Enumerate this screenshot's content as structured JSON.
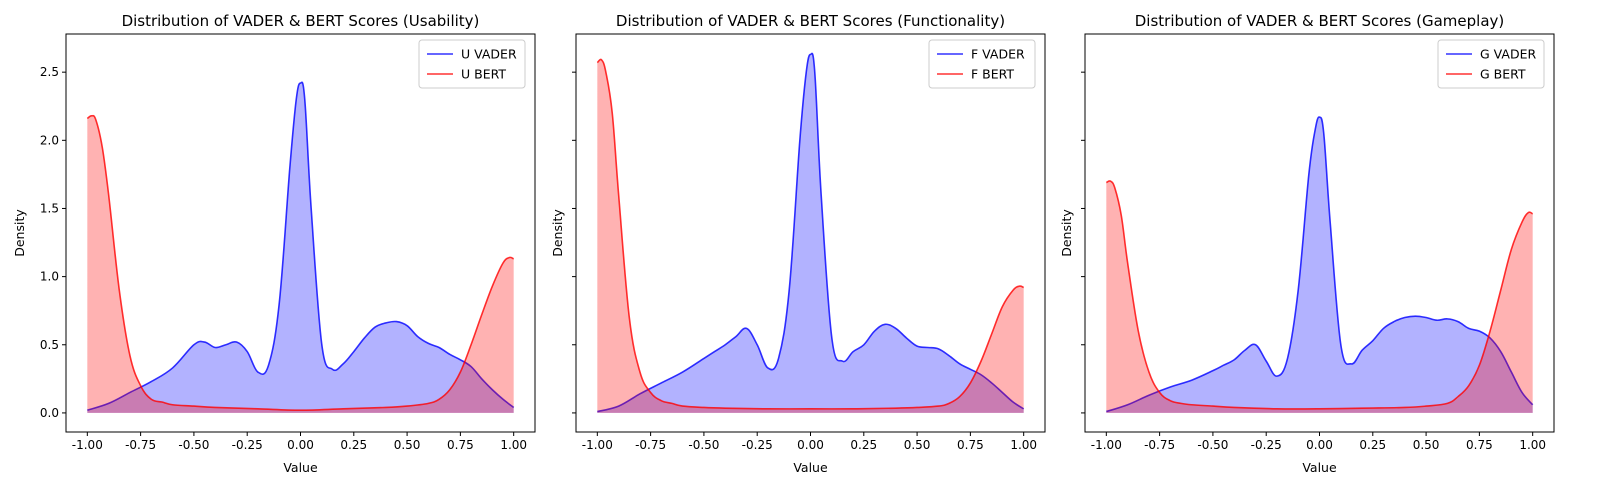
{
  "figure": {
    "background": "#ffffff",
    "series_colors": {
      "vader": "#0000ff",
      "bert": "#ff0000"
    }
  },
  "chart_data": [
    {
      "type": "area",
      "title": "Distribution of VADER & BERT Scores (Usability)",
      "xlabel": "Value",
      "ylabel": "Density",
      "xlim": [
        -1.1,
        1.1
      ],
      "ylim": [
        -0.14,
        2.78
      ],
      "xticks": [
        "-1.00",
        "-0.75",
        "-0.50",
        "-0.25",
        "0.00",
        "0.25",
        "0.50",
        "0.75",
        "1.00"
      ],
      "yticks": [
        "0.0",
        "0.5",
        "1.0",
        "1.5",
        "2.0",
        "2.5"
      ],
      "show_ytick_labels": true,
      "grid": false,
      "legend": "top-right",
      "series": [
        {
          "name": "U VADER",
          "color": "#0000ff",
          "x": [
            -1.0,
            -0.9,
            -0.8,
            -0.7,
            -0.6,
            -0.5,
            -0.45,
            -0.4,
            -0.35,
            -0.3,
            -0.25,
            -0.2,
            -0.15,
            -0.1,
            -0.05,
            -0.02,
            0.0,
            0.02,
            0.05,
            0.1,
            0.15,
            0.2,
            0.25,
            0.3,
            0.35,
            0.4,
            0.45,
            0.5,
            0.55,
            0.6,
            0.65,
            0.7,
            0.75,
            0.8,
            0.85,
            0.9,
            0.95,
            1.0
          ],
          "values": [
            0.02,
            0.07,
            0.15,
            0.23,
            0.33,
            0.5,
            0.52,
            0.48,
            0.5,
            0.52,
            0.45,
            0.3,
            0.35,
            0.8,
            1.8,
            2.3,
            2.42,
            2.3,
            1.5,
            0.5,
            0.32,
            0.36,
            0.45,
            0.55,
            0.63,
            0.66,
            0.67,
            0.64,
            0.56,
            0.51,
            0.48,
            0.43,
            0.39,
            0.34,
            0.25,
            0.17,
            0.1,
            0.04
          ]
        },
        {
          "name": "U BERT",
          "color": "#ff0000",
          "x": [
            -1.0,
            -0.98,
            -0.96,
            -0.93,
            -0.9,
            -0.85,
            -0.8,
            -0.75,
            -0.7,
            -0.65,
            -0.6,
            -0.5,
            -0.4,
            -0.2,
            0.0,
            0.2,
            0.4,
            0.5,
            0.6,
            0.65,
            0.7,
            0.75,
            0.8,
            0.85,
            0.9,
            0.95,
            0.98,
            1.0
          ],
          "values": [
            2.16,
            2.18,
            2.15,
            1.95,
            1.6,
            0.9,
            0.42,
            0.2,
            0.1,
            0.08,
            0.06,
            0.05,
            0.04,
            0.03,
            0.02,
            0.03,
            0.04,
            0.05,
            0.07,
            0.1,
            0.17,
            0.3,
            0.5,
            0.72,
            0.93,
            1.1,
            1.14,
            1.13
          ]
        }
      ]
    },
    {
      "type": "area",
      "title": "Distribution of VADER & BERT Scores (Functionality)",
      "xlabel": "Value",
      "ylabel": "Density",
      "xlim": [
        -1.1,
        1.1
      ],
      "ylim": [
        -0.14,
        2.78
      ],
      "xticks": [
        "-1.00",
        "-0.75",
        "-0.50",
        "-0.25",
        "0.00",
        "0.25",
        "0.50",
        "0.75",
        "1.00"
      ],
      "yticks": [
        "0.0",
        "0.5",
        "1.0",
        "1.5",
        "2.0",
        "2.5"
      ],
      "show_ytick_labels": false,
      "grid": false,
      "legend": "top-right",
      "series": [
        {
          "name": "F VADER",
          "color": "#0000ff",
          "x": [
            -1.0,
            -0.9,
            -0.8,
            -0.7,
            -0.6,
            -0.5,
            -0.45,
            -0.4,
            -0.35,
            -0.3,
            -0.25,
            -0.2,
            -0.15,
            -0.1,
            -0.05,
            -0.02,
            0.0,
            0.02,
            0.05,
            0.1,
            0.15,
            0.2,
            0.25,
            0.3,
            0.35,
            0.4,
            0.45,
            0.5,
            0.55,
            0.6,
            0.65,
            0.7,
            0.75,
            0.8,
            0.85,
            0.9,
            0.95,
            1.0
          ],
          "values": [
            0.01,
            0.05,
            0.14,
            0.22,
            0.3,
            0.4,
            0.45,
            0.5,
            0.56,
            0.62,
            0.5,
            0.33,
            0.4,
            0.9,
            2.0,
            2.5,
            2.63,
            2.5,
            1.6,
            0.55,
            0.38,
            0.45,
            0.5,
            0.6,
            0.65,
            0.62,
            0.55,
            0.49,
            0.48,
            0.47,
            0.42,
            0.36,
            0.32,
            0.28,
            0.22,
            0.15,
            0.08,
            0.03
          ]
        },
        {
          "name": "F BERT",
          "color": "#ff0000",
          "x": [
            -1.0,
            -0.98,
            -0.96,
            -0.93,
            -0.9,
            -0.85,
            -0.8,
            -0.75,
            -0.7,
            -0.65,
            -0.6,
            -0.5,
            -0.4,
            -0.2,
            0.0,
            0.2,
            0.4,
            0.5,
            0.6,
            0.65,
            0.7,
            0.75,
            0.8,
            0.85,
            0.9,
            0.95,
            0.98,
            1.0
          ],
          "values": [
            2.57,
            2.59,
            2.5,
            2.2,
            1.6,
            0.7,
            0.3,
            0.15,
            0.09,
            0.07,
            0.05,
            0.04,
            0.035,
            0.03,
            0.03,
            0.03,
            0.035,
            0.04,
            0.05,
            0.07,
            0.12,
            0.22,
            0.38,
            0.58,
            0.78,
            0.9,
            0.93,
            0.92
          ]
        }
      ]
    },
    {
      "type": "area",
      "title": "Distribution of VADER & BERT Scores (Gameplay)",
      "xlabel": "Value",
      "ylabel": "Density",
      "xlim": [
        -1.1,
        1.1
      ],
      "ylim": [
        -0.14,
        2.78
      ],
      "xticks": [
        "-1.00",
        "-0.75",
        "-0.50",
        "-0.25",
        "0.00",
        "0.25",
        "0.50",
        "0.75",
        "1.00"
      ],
      "yticks": [
        "0.0",
        "0.5",
        "1.0",
        "1.5",
        "2.0",
        "2.5"
      ],
      "show_ytick_labels": false,
      "grid": false,
      "legend": "top-right",
      "series": [
        {
          "name": "G VADER",
          "color": "#0000ff",
          "x": [
            -1.0,
            -0.9,
            -0.8,
            -0.7,
            -0.6,
            -0.5,
            -0.45,
            -0.4,
            -0.35,
            -0.3,
            -0.25,
            -0.2,
            -0.15,
            -0.1,
            -0.05,
            -0.02,
            0.0,
            0.02,
            0.05,
            0.1,
            0.15,
            0.2,
            0.25,
            0.3,
            0.35,
            0.4,
            0.45,
            0.5,
            0.55,
            0.6,
            0.65,
            0.7,
            0.75,
            0.8,
            0.85,
            0.9,
            0.95,
            1.0
          ],
          "values": [
            0.01,
            0.06,
            0.13,
            0.19,
            0.24,
            0.31,
            0.35,
            0.39,
            0.46,
            0.5,
            0.38,
            0.27,
            0.4,
            0.9,
            1.75,
            2.08,
            2.17,
            2.05,
            1.4,
            0.5,
            0.36,
            0.46,
            0.53,
            0.62,
            0.67,
            0.7,
            0.71,
            0.7,
            0.68,
            0.69,
            0.67,
            0.62,
            0.6,
            0.55,
            0.45,
            0.3,
            0.15,
            0.06
          ]
        },
        {
          "name": "G BERT",
          "color": "#ff0000",
          "x": [
            -1.0,
            -0.98,
            -0.96,
            -0.93,
            -0.9,
            -0.85,
            -0.8,
            -0.75,
            -0.7,
            -0.65,
            -0.6,
            -0.5,
            -0.4,
            -0.2,
            0.0,
            0.2,
            0.4,
            0.5,
            0.6,
            0.65,
            0.7,
            0.75,
            0.8,
            0.85,
            0.9,
            0.95,
            0.98,
            1.0
          ],
          "values": [
            1.69,
            1.7,
            1.65,
            1.45,
            1.1,
            0.6,
            0.3,
            0.15,
            0.09,
            0.07,
            0.06,
            0.05,
            0.04,
            0.03,
            0.03,
            0.035,
            0.04,
            0.05,
            0.07,
            0.12,
            0.2,
            0.35,
            0.6,
            0.9,
            1.2,
            1.4,
            1.47,
            1.46
          ]
        }
      ]
    }
  ]
}
